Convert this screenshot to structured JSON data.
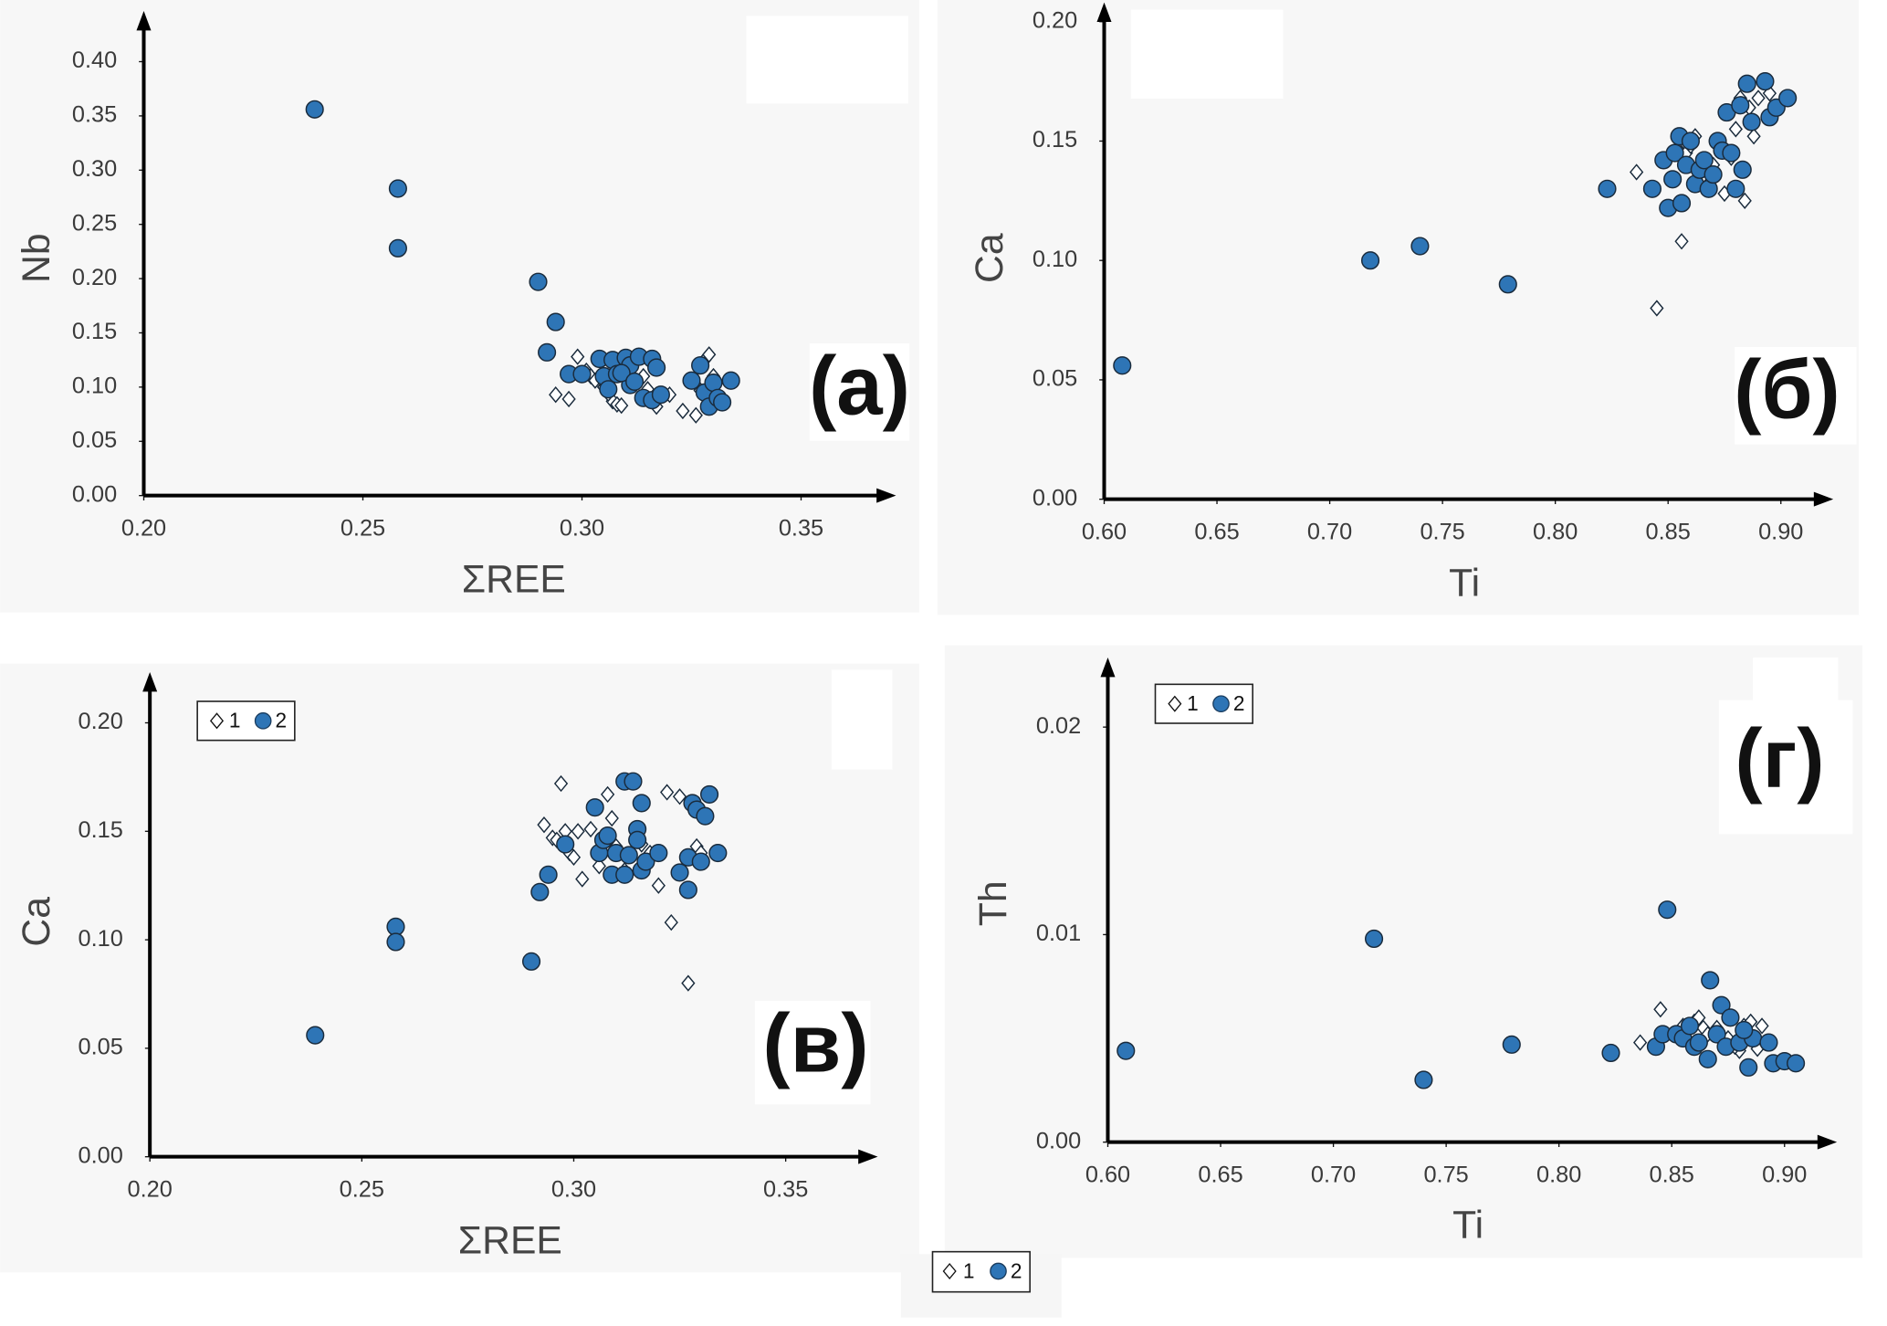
{
  "chart_data": [
    {
      "type": "scatter",
      "label": "(а)",
      "xlabel": "ΣREE",
      "ylabel": "Nb",
      "legend": false,
      "xlim": [
        0.2,
        0.37
      ],
      "ylim": [
        0,
        0.44
      ],
      "xticks": [
        {
          "value": 0.2,
          "label": "0.20"
        },
        {
          "value": 0.25,
          "label": "0.25"
        },
        {
          "value": 0.3,
          "label": "0.30"
        },
        {
          "value": 0.35,
          "label": "0.35"
        }
      ],
      "yticks": [
        {
          "value": 0,
          "label": "0.00"
        },
        {
          "value": 0.05,
          "label": "0.05"
        },
        {
          "value": 0.1,
          "label": "0.10"
        },
        {
          "value": 0.15,
          "label": "0.15"
        },
        {
          "value": 0.2,
          "label": "0.20"
        },
        {
          "value": 0.25,
          "label": "0.25"
        },
        {
          "value": 0.3,
          "label": "0.30"
        },
        {
          "value": 0.35,
          "label": "0.35"
        },
        {
          "value": 0.4,
          "label": "0.40"
        }
      ],
      "series": [
        {
          "name": "1",
          "marker": "diamond",
          "color": "#ffffff",
          "x": [
            0.294,
            0.297,
            0.299,
            0.301,
            0.302,
            0.303,
            0.305,
            0.307,
            0.308,
            0.309,
            0.31,
            0.312,
            0.314,
            0.317,
            0.32,
            0.323,
            0.326,
            0.327,
            0.328,
            0.329,
            0.33,
            0.306,
            0.315
          ],
          "y": [
            0.093,
            0.089,
            0.128,
            0.115,
            0.11,
            0.106,
            0.1,
            0.087,
            0.084,
            0.083,
            0.12,
            0.102,
            0.11,
            0.082,
            0.093,
            0.078,
            0.074,
            0.097,
            0.125,
            0.13,
            0.11,
            0.094,
            0.098
          ]
        },
        {
          "name": "2",
          "marker": "circle",
          "color": "#2e75b6",
          "x": [
            0.239,
            0.258,
            0.258,
            0.29,
            0.294,
            0.292,
            0.297,
            0.3,
            0.304,
            0.305,
            0.306,
            0.307,
            0.308,
            0.31,
            0.311,
            0.311,
            0.313,
            0.314,
            0.316,
            0.316,
            0.317,
            0.318,
            0.325,
            0.327,
            0.328,
            0.329,
            0.33,
            0.331,
            0.332,
            0.334,
            0.309,
            0.312
          ],
          "y": [
            0.356,
            0.283,
            0.228,
            0.197,
            0.16,
            0.132,
            0.112,
            0.112,
            0.126,
            0.11,
            0.098,
            0.125,
            0.112,
            0.127,
            0.12,
            0.102,
            0.128,
            0.09,
            0.088,
            0.126,
            0.118,
            0.093,
            0.106,
            0.12,
            0.095,
            0.082,
            0.104,
            0.09,
            0.086,
            0.106,
            0.113,
            0.105
          ]
        }
      ]
    },
    {
      "type": "scatter",
      "label": "(б)",
      "xlabel": "Ti",
      "ylabel": "Ca",
      "legend": false,
      "xlim": [
        0.6,
        0.92
      ],
      "ylim": [
        0,
        0.205
      ],
      "xticks": [
        {
          "value": 0.6,
          "label": "0.60"
        },
        {
          "value": 0.65,
          "label": "0.65"
        },
        {
          "value": 0.7,
          "label": "0.70"
        },
        {
          "value": 0.75,
          "label": "0.75"
        },
        {
          "value": 0.8,
          "label": "0.80"
        },
        {
          "value": 0.85,
          "label": "0.85"
        },
        {
          "value": 0.9,
          "label": "0.90"
        }
      ],
      "yticks": [
        {
          "value": 0,
          "label": "0.00"
        },
        {
          "value": 0.05,
          "label": "0.05"
        },
        {
          "value": 0.1,
          "label": "0.10"
        },
        {
          "value": 0.15,
          "label": "0.15"
        },
        {
          "value": 0.2,
          "label": "0.20"
        }
      ],
      "series": [
        {
          "name": "1",
          "marker": "diamond",
          "color": "#ffffff",
          "x": [
            0.845,
            0.856,
            0.836,
            0.855,
            0.858,
            0.86,
            0.862,
            0.865,
            0.867,
            0.87,
            0.875,
            0.88,
            0.882,
            0.884,
            0.886,
            0.888,
            0.89,
            0.895,
            0.878,
            0.863
          ],
          "y": [
            0.08,
            0.108,
            0.137,
            0.146,
            0.145,
            0.148,
            0.152,
            0.135,
            0.13,
            0.14,
            0.128,
            0.155,
            0.168,
            0.125,
            0.164,
            0.152,
            0.168,
            0.17,
            0.143,
            0.138
          ]
        },
        {
          "name": "2",
          "marker": "circle",
          "color": "#2e75b6",
          "x": [
            0.608,
            0.718,
            0.74,
            0.779,
            0.823,
            0.843,
            0.848,
            0.85,
            0.852,
            0.853,
            0.855,
            0.856,
            0.858,
            0.86,
            0.862,
            0.864,
            0.866,
            0.868,
            0.87,
            0.872,
            0.874,
            0.876,
            0.88,
            0.882,
            0.883,
            0.885,
            0.887,
            0.893,
            0.895,
            0.898,
            0.903,
            0.878
          ],
          "y": [
            0.056,
            0.1,
            0.106,
            0.09,
            0.13,
            0.13,
            0.142,
            0.122,
            0.134,
            0.145,
            0.152,
            0.124,
            0.14,
            0.15,
            0.132,
            0.138,
            0.142,
            0.13,
            0.136,
            0.15,
            0.146,
            0.162,
            0.13,
            0.165,
            0.138,
            0.174,
            0.158,
            0.175,
            0.16,
            0.164,
            0.168,
            0.145
          ]
        }
      ]
    },
    {
      "type": "scatter",
      "label": "(в)",
      "xlabel": "ΣREE",
      "ylabel": "Ca",
      "legend": true,
      "xlim": [
        0.2,
        0.37
      ],
      "ylim": [
        0,
        0.22
      ],
      "xticks": [
        {
          "value": 0.2,
          "label": "0.20"
        },
        {
          "value": 0.25,
          "label": "0.25"
        },
        {
          "value": 0.3,
          "label": "0.30"
        },
        {
          "value": 0.35,
          "label": "0.35"
        }
      ],
      "yticks": [
        {
          "value": 0,
          "label": "0.00"
        },
        {
          "value": 0.05,
          "label": "0.05"
        },
        {
          "value": 0.1,
          "label": "0.10"
        },
        {
          "value": 0.15,
          "label": "0.15"
        },
        {
          "value": 0.2,
          "label": "0.20"
        }
      ],
      "series": [
        {
          "name": "1",
          "marker": "diamond",
          "color": "#ffffff",
          "x": [
            0.293,
            0.295,
            0.296,
            0.297,
            0.298,
            0.299,
            0.3,
            0.301,
            0.302,
            0.304,
            0.306,
            0.308,
            0.309,
            0.31,
            0.316,
            0.318,
            0.32,
            0.322,
            0.323,
            0.325,
            0.327,
            0.329,
            0.33,
            0.312
          ],
          "y": [
            0.153,
            0.147,
            0.146,
            0.172,
            0.15,
            0.14,
            0.138,
            0.15,
            0.128,
            0.151,
            0.134,
            0.167,
            0.156,
            0.143,
            0.144,
            0.14,
            0.125,
            0.168,
            0.108,
            0.166,
            0.08,
            0.143,
            0.14,
            0.132
          ]
        },
        {
          "name": "2",
          "marker": "circle",
          "color": "#2e75b6",
          "x": [
            0.239,
            0.258,
            0.258,
            0.29,
            0.292,
            0.294,
            0.298,
            0.305,
            0.306,
            0.307,
            0.308,
            0.309,
            0.31,
            0.312,
            0.312,
            0.313,
            0.314,
            0.315,
            0.315,
            0.316,
            0.316,
            0.317,
            0.32,
            0.325,
            0.327,
            0.327,
            0.328,
            0.329,
            0.33,
            0.331,
            0.332,
            0.334
          ],
          "y": [
            0.056,
            0.106,
            0.099,
            0.09,
            0.122,
            0.13,
            0.144,
            0.161,
            0.14,
            0.146,
            0.148,
            0.13,
            0.14,
            0.173,
            0.13,
            0.139,
            0.173,
            0.151,
            0.146,
            0.163,
            0.132,
            0.136,
            0.14,
            0.131,
            0.138,
            0.123,
            0.163,
            0.16,
            0.136,
            0.157,
            0.167,
            0.14
          ]
        }
      ]
    },
    {
      "type": "scatter",
      "label": "(г)",
      "xlabel": "Ti",
      "ylabel": "Th",
      "legend": true,
      "xlim": [
        0.6,
        0.92
      ],
      "ylim": [
        0,
        0.023
      ],
      "xticks": [
        {
          "value": 0.6,
          "label": "0.60"
        },
        {
          "value": 0.65,
          "label": "0.65"
        },
        {
          "value": 0.7,
          "label": "0.70"
        },
        {
          "value": 0.75,
          "label": "0.75"
        },
        {
          "value": 0.8,
          "label": "0.80"
        },
        {
          "value": 0.85,
          "label": "0.85"
        },
        {
          "value": 0.9,
          "label": "0.90"
        }
      ],
      "yticks": [
        {
          "value": 0,
          "label": "0.00"
        },
        {
          "value": 0.01,
          "label": "0.01"
        },
        {
          "value": 0.02,
          "label": "0.02"
        }
      ],
      "series": [
        {
          "name": "1",
          "marker": "diamond",
          "color": "#ffffff",
          "x": [
            0.836,
            0.845,
            0.855,
            0.86,
            0.862,
            0.864,
            0.866,
            0.87,
            0.875,
            0.88,
            0.882,
            0.885,
            0.888,
            0.89,
            0.878
          ],
          "y": [
            0.0048,
            0.0064,
            0.0056,
            0.0058,
            0.006,
            0.0055,
            0.0052,
            0.0055,
            0.005,
            0.0044,
            0.0056,
            0.0058,
            0.0045,
            0.0056,
            0.0046
          ]
        },
        {
          "name": "2",
          "marker": "circle",
          "color": "#2e75b6",
          "x": [
            0.608,
            0.718,
            0.74,
            0.779,
            0.823,
            0.843,
            0.848,
            0.846,
            0.852,
            0.855,
            0.858,
            0.86,
            0.862,
            0.866,
            0.867,
            0.87,
            0.872,
            0.874,
            0.876,
            0.88,
            0.884,
            0.886,
            0.893,
            0.895,
            0.9,
            0.905,
            0.882
          ],
          "y": [
            0.0044,
            0.0098,
            0.003,
            0.0047,
            0.0043,
            0.0046,
            0.0112,
            0.0052,
            0.0052,
            0.005,
            0.0056,
            0.0046,
            0.0048,
            0.004,
            0.0078,
            0.0052,
            0.0066,
            0.0046,
            0.006,
            0.0048,
            0.0036,
            0.005,
            0.0048,
            0.0038,
            0.0039,
            0.0038,
            0.0054
          ]
        }
      ]
    }
  ]
}
